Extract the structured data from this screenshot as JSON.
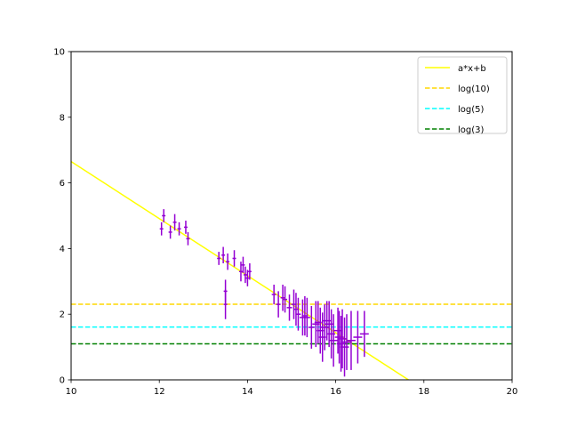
{
  "chart_data": {
    "type": "scatter",
    "title": "",
    "xlabel": "",
    "ylabel": "",
    "xlim": [
      10,
      20
    ],
    "ylim": [
      0,
      10
    ],
    "xticks": [
      10,
      12,
      14,
      16,
      18,
      20
    ],
    "yticks": [
      0,
      2,
      4,
      6,
      8,
      10
    ],
    "grid": false,
    "legend_position": "top-right",
    "points": {
      "color": "#9400d3",
      "x": [
        12.05,
        12.1,
        12.25,
        12.35,
        12.45,
        12.6,
        12.65,
        13.35,
        13.45,
        13.5,
        13.5,
        13.55,
        13.7,
        13.85,
        13.9,
        13.95,
        14.0,
        14.05,
        14.6,
        14.7,
        14.8,
        14.85,
        14.95,
        15.05,
        15.1,
        15.15,
        15.25,
        15.3,
        15.35,
        15.45,
        15.55,
        15.6,
        15.65,
        15.7,
        15.75,
        15.8,
        15.85,
        15.9,
        15.95,
        16.05,
        16.08,
        16.12,
        16.15,
        16.2,
        16.25,
        16.35,
        16.5,
        16.65
      ],
      "y": [
        4.6,
        5.0,
        4.5,
        4.8,
        4.6,
        4.65,
        4.3,
        3.7,
        3.8,
        2.7,
        2.3,
        3.6,
        3.7,
        3.3,
        3.5,
        3.2,
        3.1,
        3.3,
        2.6,
        2.3,
        2.5,
        2.45,
        2.2,
        2.3,
        2.15,
        2.0,
        1.9,
        1.95,
        1.9,
        1.6,
        1.7,
        1.75,
        1.5,
        1.3,
        1.6,
        1.8,
        1.7,
        1.4,
        1.2,
        1.5,
        1.3,
        1.1,
        1.25,
        1.0,
        1.15,
        1.2,
        1.3,
        1.4
      ],
      "yerr": [
        0.2,
        0.2,
        0.2,
        0.25,
        0.2,
        0.2,
        0.2,
        0.2,
        0.25,
        0.35,
        0.45,
        0.25,
        0.25,
        0.3,
        0.25,
        0.25,
        0.25,
        0.25,
        0.3,
        0.4,
        0.4,
        0.4,
        0.4,
        0.45,
        0.5,
        0.5,
        0.55,
        0.6,
        0.6,
        0.65,
        0.7,
        0.65,
        0.7,
        0.75,
        0.7,
        0.6,
        0.7,
        0.75,
        0.8,
        0.7,
        0.8,
        0.85,
        0.9,
        0.9,
        0.85,
        0.9,
        0.8,
        0.7
      ],
      "xerr": [
        0.04,
        0.04,
        0.04,
        0.04,
        0.04,
        0.04,
        0.04,
        0.04,
        0.04,
        0.04,
        0.04,
        0.04,
        0.04,
        0.04,
        0.04,
        0.04,
        0.04,
        0.04,
        0.05,
        0.05,
        0.05,
        0.05,
        0.06,
        0.06,
        0.06,
        0.06,
        0.07,
        0.07,
        0.07,
        0.07,
        0.08,
        0.08,
        0.08,
        0.08,
        0.09,
        0.09,
        0.09,
        0.09,
        0.1,
        0.1,
        0.1,
        0.1,
        0.1,
        0.1,
        0.1,
        0.1,
        0.1,
        0.1
      ]
    },
    "series": [
      {
        "name": "a*x+b",
        "kind": "line",
        "x": [
          10,
          17.65
        ],
        "y": [
          6.65,
          0
        ],
        "color": "#ffff00",
        "dash": "solid"
      },
      {
        "name": "log(10)",
        "kind": "hline",
        "y": 2.302585,
        "color": "#ffd700",
        "dash": "dashed"
      },
      {
        "name": "log(5)",
        "kind": "hline",
        "y": 1.609438,
        "color": "#00ffff",
        "dash": "dashed"
      },
      {
        "name": "log(3)",
        "kind": "hline",
        "y": 1.098612,
        "color": "#008000",
        "dash": "dashed"
      }
    ]
  }
}
